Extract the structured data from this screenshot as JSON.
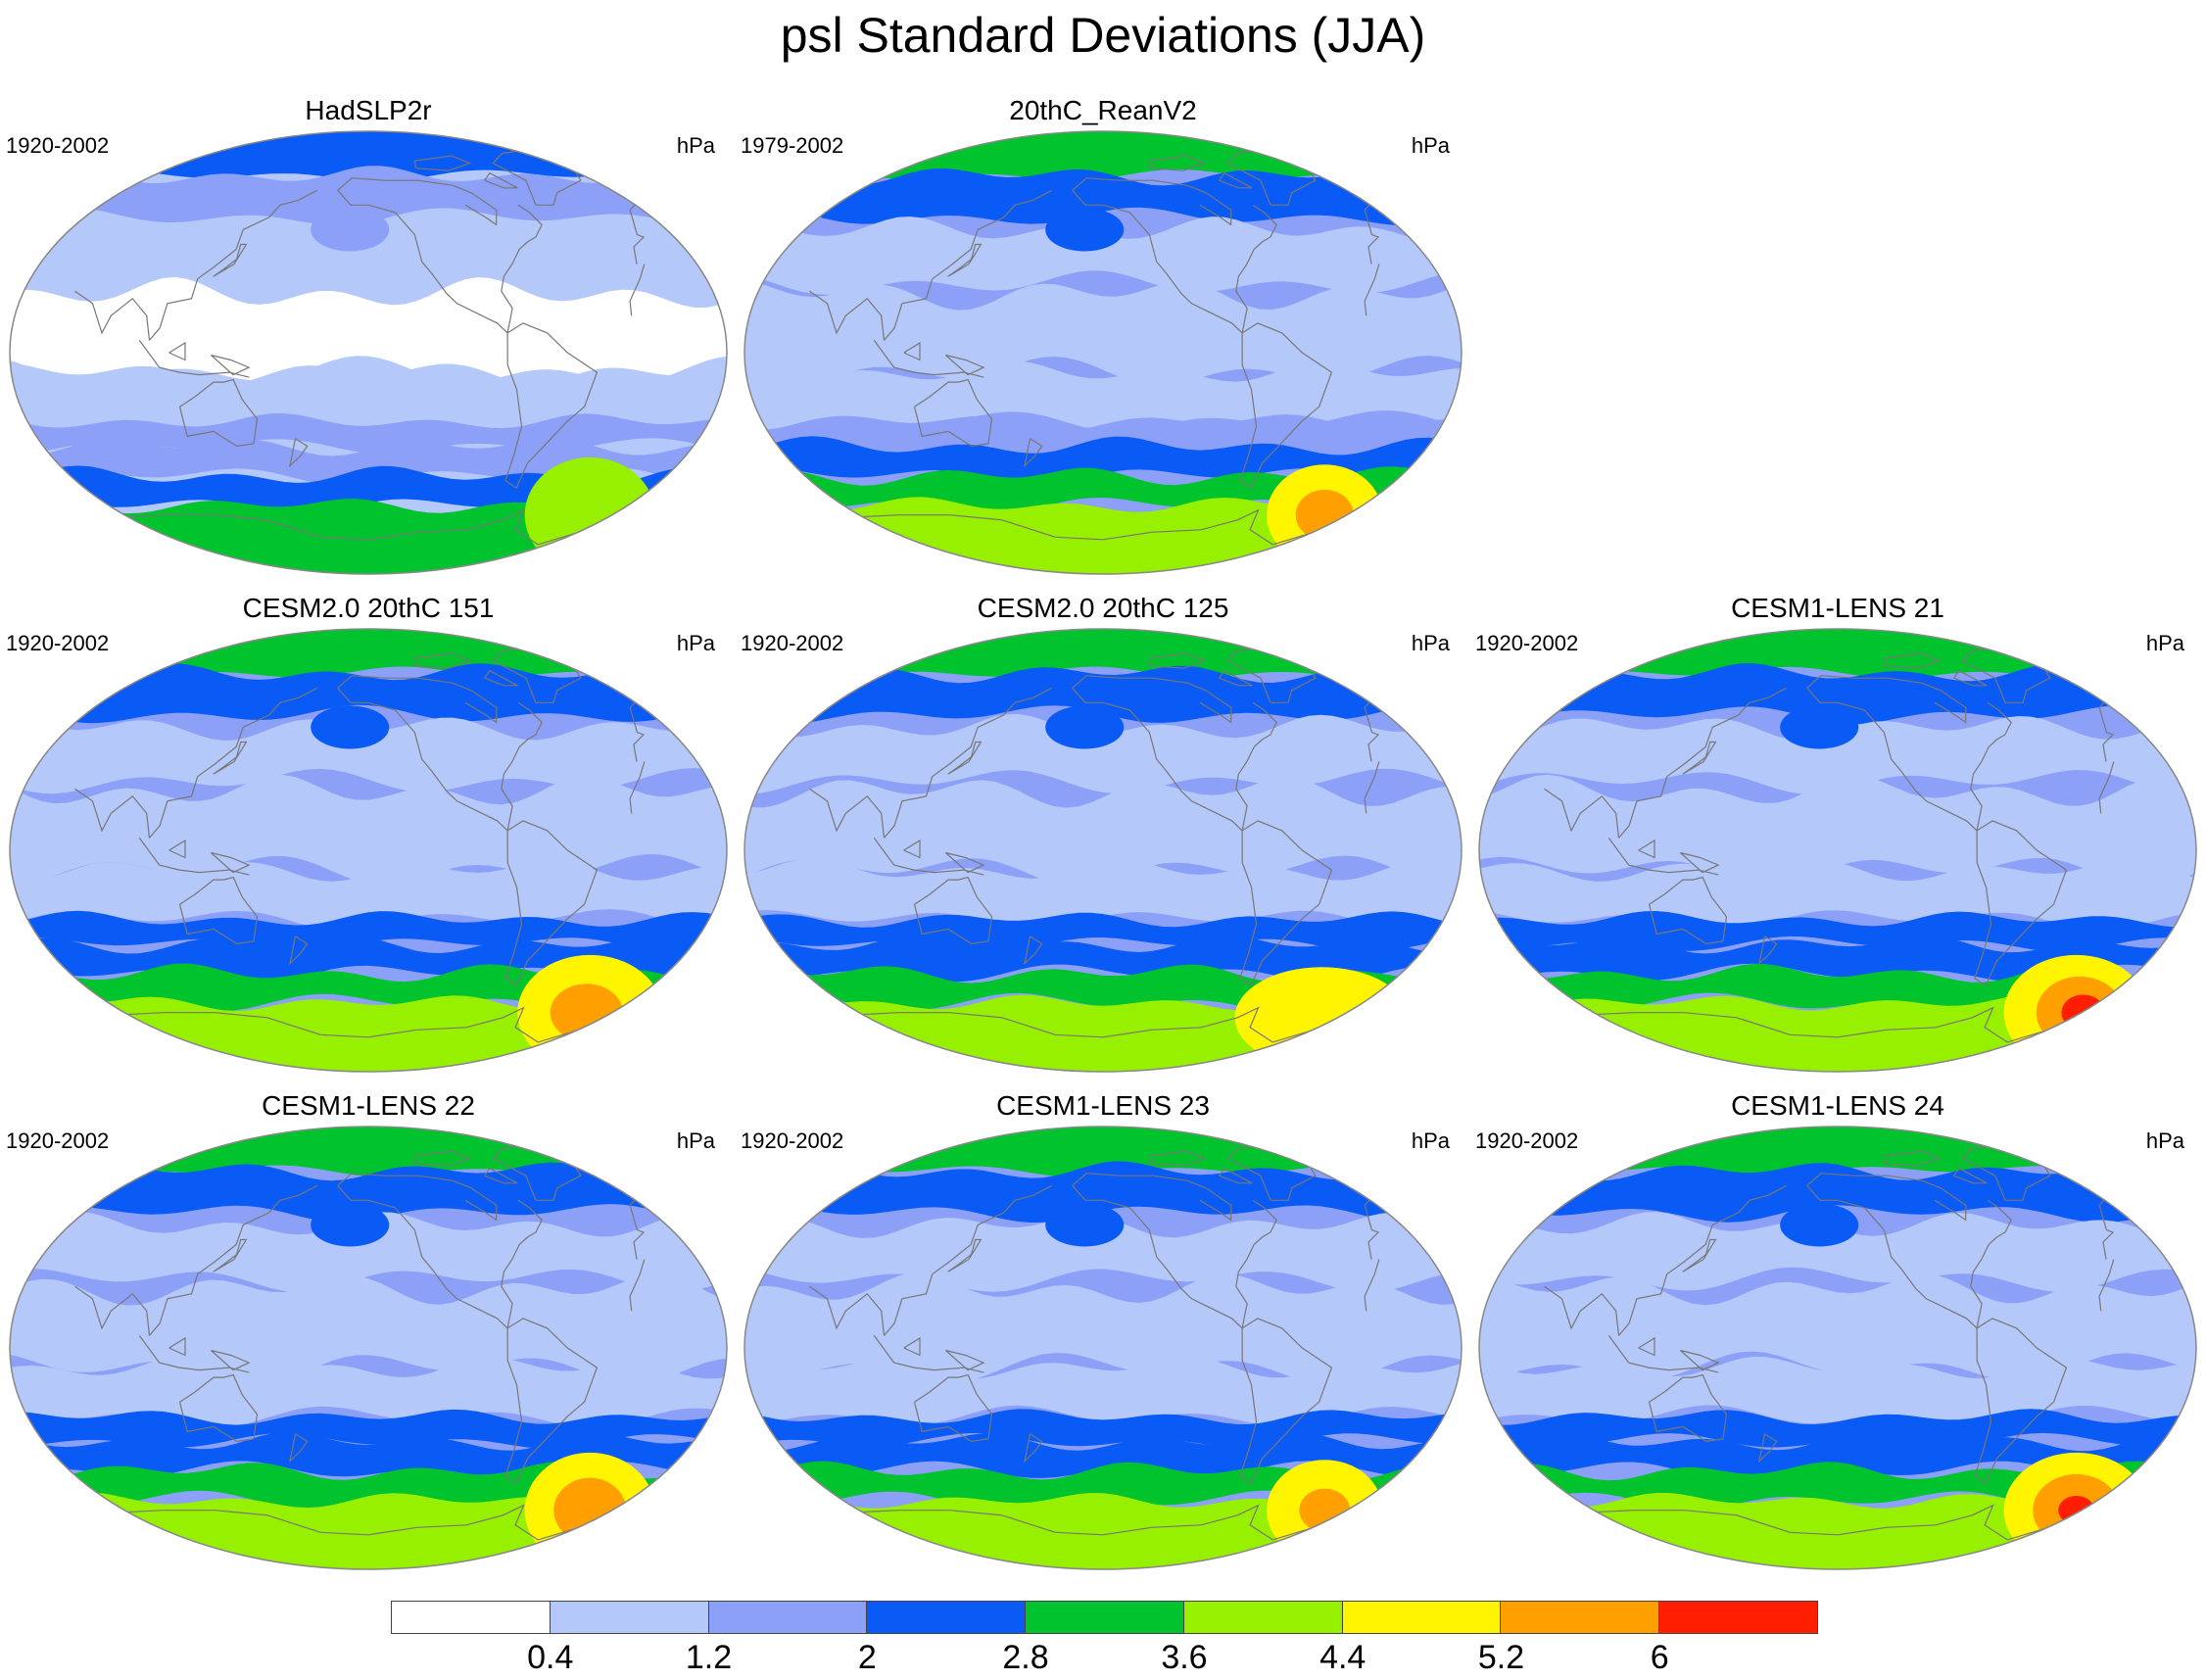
{
  "title": "psl Standard Deviations (JJA)",
  "units": "hPa",
  "colors": {
    "levels": [
      "#ffffff",
      "#b4c8fa",
      "#8ca0f8",
      "#0a5af5",
      "#00c32d",
      "#96f000",
      "#fff500",
      "#ffa000",
      "#ff1e00"
    ],
    "coast": "#777777",
    "outline": "#888888"
  },
  "colorbar": {
    "labels": [
      "0.4",
      "1.2",
      "2",
      "2.8",
      "3.6",
      "4.4",
      "5.2",
      "6"
    ]
  },
  "panels": [
    {
      "title": "HadSLP2r",
      "years": "1920-2002",
      "units": "hPa",
      "bands": {
        "arctic": 3,
        "north": 1,
        "tropics": 0,
        "southTransition": 2,
        "southOcean": 3,
        "antarcticRing": 4,
        "blobs": [
          {
            "lon": -20,
            "lat": -66,
            "rx": 0.09,
            "ry": 0.08,
            "lvl": 5
          }
        ]
      }
    },
    {
      "title": "20thC_ReanV2",
      "years": "1979-2002",
      "units": "hPa",
      "bands": {
        "arctic": 4,
        "north": 2,
        "tropics": 1,
        "southTransition": 2,
        "southOcean": 4,
        "antarcticRing": 5,
        "blobs": [
          {
            "lon": -20,
            "lat": -66,
            "rx": 0.08,
            "ry": 0.07,
            "lvl": 6
          },
          {
            "lon": -20,
            "lat": -66,
            "rx": 0.04,
            "ry": 0.035,
            "lvl": 7
          }
        ]
      }
    },
    {
      "title": "CESM2.0 20thC 151",
      "years": "1920-2002",
      "units": "hPa",
      "bands": {
        "arctic": 4,
        "north": 2,
        "tropics": 1,
        "southTransition": 3,
        "southOcean": 4,
        "antarcticRing": 5,
        "blobs": [
          {
            "lon": -20,
            "lat": -66,
            "rx": 0.1,
            "ry": 0.08,
            "lvl": 6
          },
          {
            "lon": -22,
            "lat": -66,
            "rx": 0.05,
            "ry": 0.04,
            "lvl": 7
          }
        ]
      }
    },
    {
      "title": "CESM2.0 20thC 125",
      "years": "1920-2002",
      "units": "hPa",
      "bands": {
        "arctic": 4,
        "north": 2,
        "tropics": 1,
        "southTransition": 3,
        "southOcean": 4,
        "antarcticRing": 5,
        "blobs": [
          {
            "lon": -20,
            "lat": -68,
            "rx": 0.12,
            "ry": 0.07,
            "lvl": 6
          }
        ]
      }
    },
    {
      "title": "CESM1-LENS 21",
      "years": "1920-2002",
      "units": "hPa",
      "bands": {
        "arctic": 4,
        "north": 2,
        "tropics": 1,
        "southTransition": 3,
        "southOcean": 4,
        "antarcticRing": 5,
        "blobs": [
          {
            "lon": -10,
            "lat": -66,
            "rx": 0.1,
            "ry": 0.08,
            "lvl": 6
          },
          {
            "lon": -8,
            "lat": -66,
            "rx": 0.06,
            "ry": 0.05,
            "lvl": 7
          },
          {
            "lon": -6,
            "lat": -66,
            "rx": 0.03,
            "ry": 0.025,
            "lvl": 8
          }
        ]
      }
    },
    {
      "title": "CESM1-LENS 22",
      "years": "1920-2002",
      "units": "hPa",
      "bands": {
        "arctic": 4,
        "north": 2,
        "tropics": 1,
        "southTransition": 3,
        "southOcean": 4,
        "antarcticRing": 5,
        "blobs": [
          {
            "lon": -20,
            "lat": -66,
            "rx": 0.09,
            "ry": 0.08,
            "lvl": 6
          },
          {
            "lon": -20,
            "lat": -66,
            "rx": 0.05,
            "ry": 0.045,
            "lvl": 7
          }
        ]
      }
    },
    {
      "title": "CESM1-LENS 23",
      "years": "1920-2002",
      "units": "hPa",
      "bands": {
        "arctic": 4,
        "north": 2,
        "tropics": 1,
        "southTransition": 3,
        "southOcean": 4,
        "antarcticRing": 5,
        "blobs": [
          {
            "lon": -20,
            "lat": -66,
            "rx": 0.08,
            "ry": 0.07,
            "lvl": 6
          },
          {
            "lon": -20,
            "lat": -66,
            "rx": 0.035,
            "ry": 0.03,
            "lvl": 7
          }
        ]
      }
    },
    {
      "title": "CESM1-LENS 24",
      "years": "1920-2002",
      "units": "hPa",
      "bands": {
        "arctic": 4,
        "north": 2,
        "tropics": 1,
        "southTransition": 3,
        "southOcean": 4,
        "antarcticRing": 5,
        "blobs": [
          {
            "lon": -10,
            "lat": -66,
            "rx": 0.1,
            "ry": 0.08,
            "lvl": 6
          },
          {
            "lon": -10,
            "lat": -66,
            "rx": 0.06,
            "ry": 0.05,
            "lvl": 7
          },
          {
            "lon": -10,
            "lat": -66,
            "rx": 0.025,
            "ry": 0.02,
            "lvl": 8
          }
        ]
      }
    }
  ]
}
